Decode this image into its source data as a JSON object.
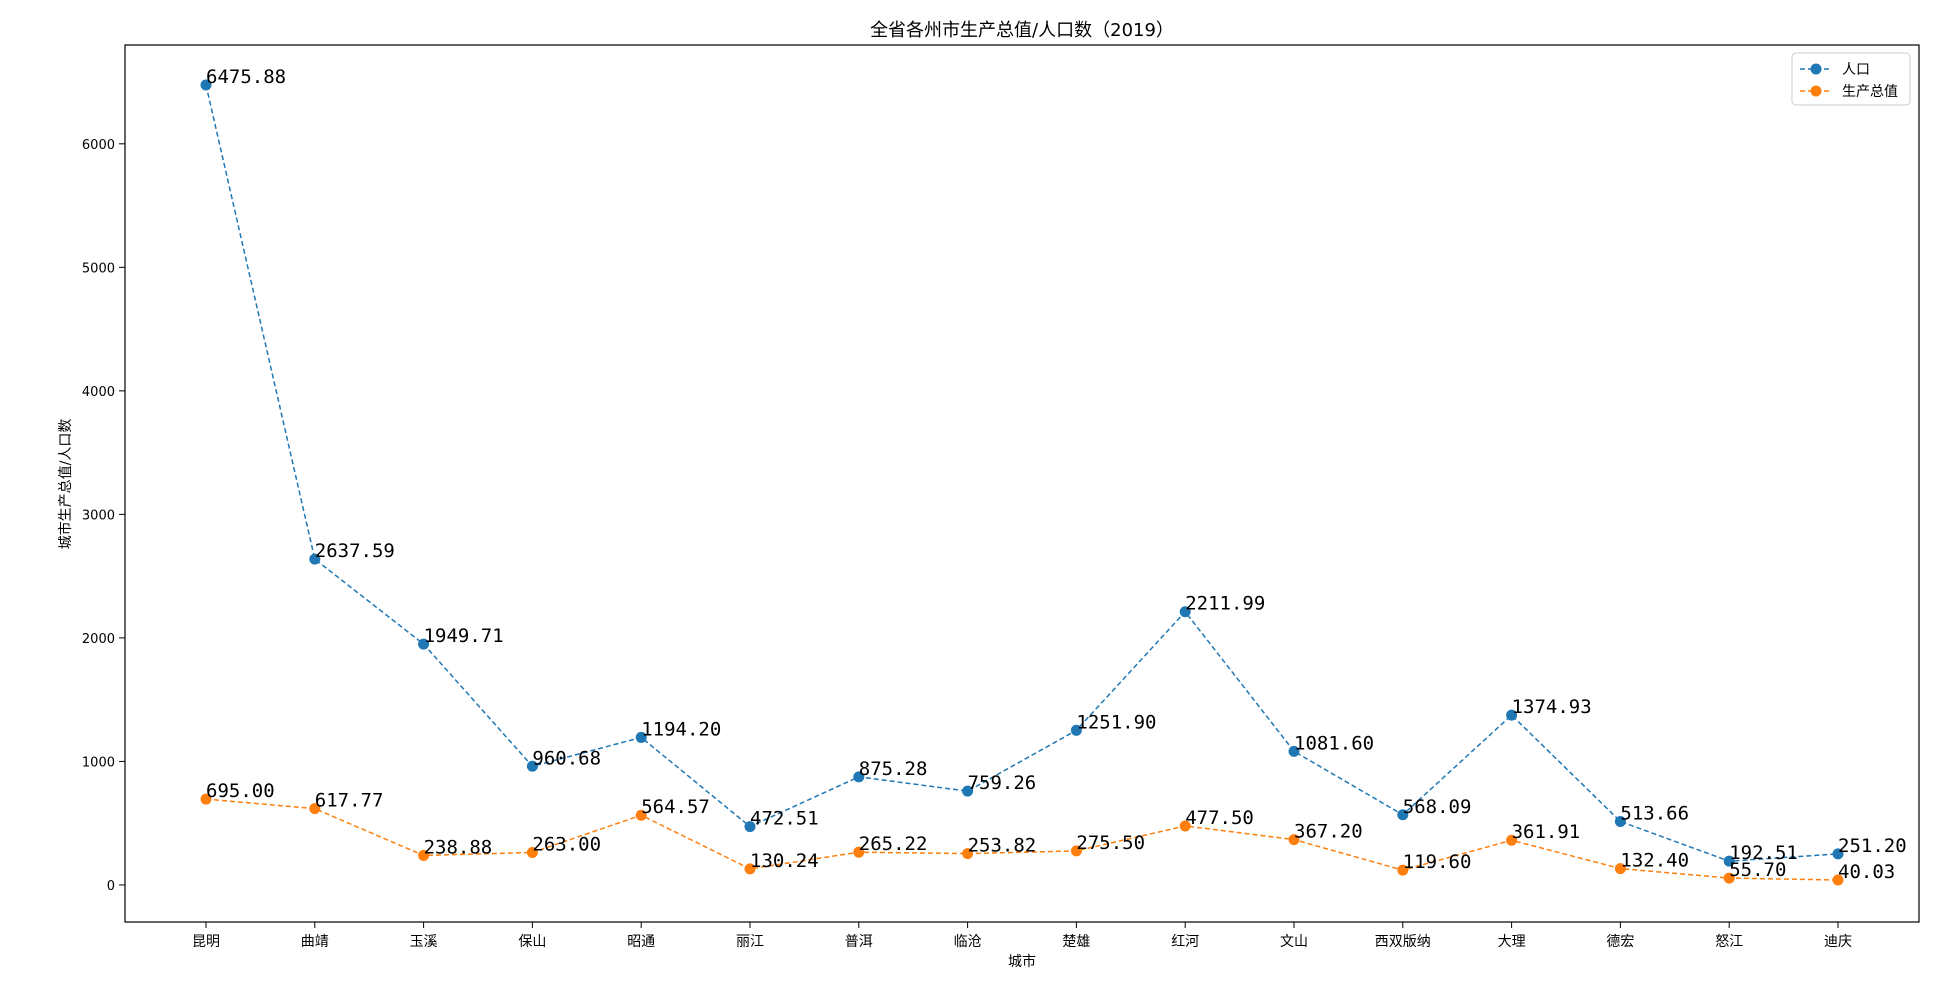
{
  "chart_data": {
    "type": "line",
    "title": "全省各州市生产总值/人口数（2019）",
    "xlabel": "城市",
    "ylabel": "城市生产总值/人口数",
    "categories": [
      "昆明",
      "曲靖",
      "玉溪",
      "保山",
      "昭通",
      "丽江",
      "普洱",
      "临沧",
      "楚雄",
      "红河",
      "文山",
      "西双版纳",
      "大理",
      "德宏",
      "怒江",
      "迪庆"
    ],
    "ylim": [
      -300,
      6800
    ],
    "yticks": [
      0,
      1000,
      2000,
      3000,
      4000,
      5000,
      6000
    ],
    "legend_position": "top-right",
    "grid": false,
    "series": [
      {
        "name": "人口",
        "color": "#1f77b4",
        "linestyle": "dashed",
        "marker": "circle",
        "values": [
          6475.88,
          2637.59,
          1949.71,
          960.68,
          1194.2,
          472.51,
          875.28,
          759.26,
          1251.9,
          2211.99,
          1081.6,
          568.09,
          1374.93,
          513.66,
          192.51,
          251.2
        ],
        "labels": [
          "6475.88",
          "2637.59",
          "1949.71",
          "960.68",
          "1194.20",
          "472.51",
          "875.28",
          "759.26",
          "1251.90",
          "2211.99",
          "1081.60",
          "568.09",
          "1374.93",
          "513.66",
          "192.51",
          "251.20"
        ]
      },
      {
        "name": "生产总值",
        "color": "#ff7f0e",
        "linestyle": "dashed",
        "marker": "circle",
        "values": [
          695.0,
          617.77,
          238.88,
          263.0,
          564.57,
          130.24,
          265.22,
          253.82,
          275.5,
          477.5,
          367.2,
          119.6,
          361.91,
          132.4,
          55.7,
          40.03
        ],
        "labels": [
          "695.00",
          "617.77",
          "238.88",
          "263.00",
          "564.57",
          "130.24",
          "265.22",
          "253.82",
          "275.50",
          "477.50",
          "367.20",
          "119.60",
          "361.91",
          "132.40",
          "55.70",
          "40.03"
        ]
      }
    ]
  }
}
